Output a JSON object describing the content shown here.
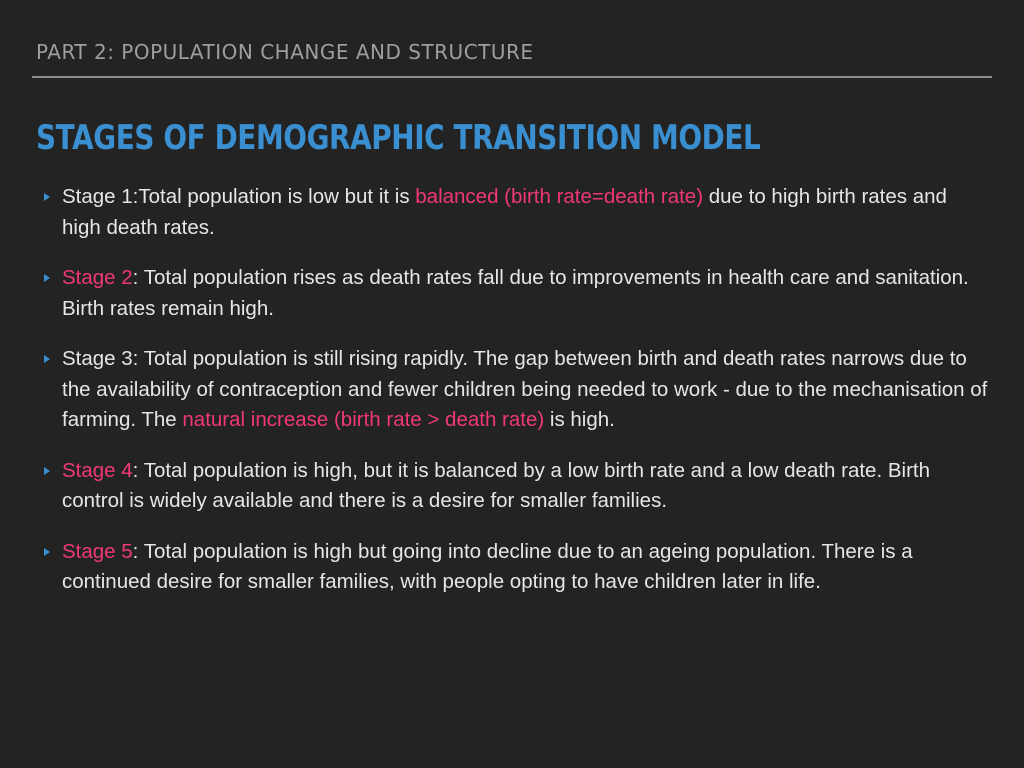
{
  "header": {
    "section": "PART 2: POPULATION CHANGE AND STRUCTURE"
  },
  "title": "STAGES OF DEMOGRAPHIC TRANSITION MODEL",
  "colors": {
    "accent": "#3a8fd1",
    "highlight": "#f0377a",
    "background": "#232323",
    "text": "#e6e6e6"
  },
  "bullets": [
    {
      "t1": " Stage 1:Total population is low but it is ",
      "h1": "balanced (birth rate=death rate)",
      "t2": " due to high birth rates and high death rates."
    },
    {
      "h1": "Stage 2",
      "t1": ": Total population rises as death rates fall due to improvements in health care and sanitation. Birth rates remain high."
    },
    {
      "t1": "Stage 3: Total population is still rising rapidly. The gap between birth and death rates narrows due to the availability of contraception and fewer children being needed to work - due to the mechanisation of farming. The ",
      "h1": "natural increase (birth rate > death rate)",
      "t2": " is high."
    },
    {
      "h1": "Stage 4",
      "t1": ": Total population is high, but it is balanced by a low birth rate and a low death rate. Birth control is widely available and there is a desire for smaller families."
    },
    {
      "h1": "Stage 5",
      "t1": ": Total population is high but going into decline due to an ageing population. There is a continued desire for smaller families, with people opting to have children later in life."
    }
  ]
}
